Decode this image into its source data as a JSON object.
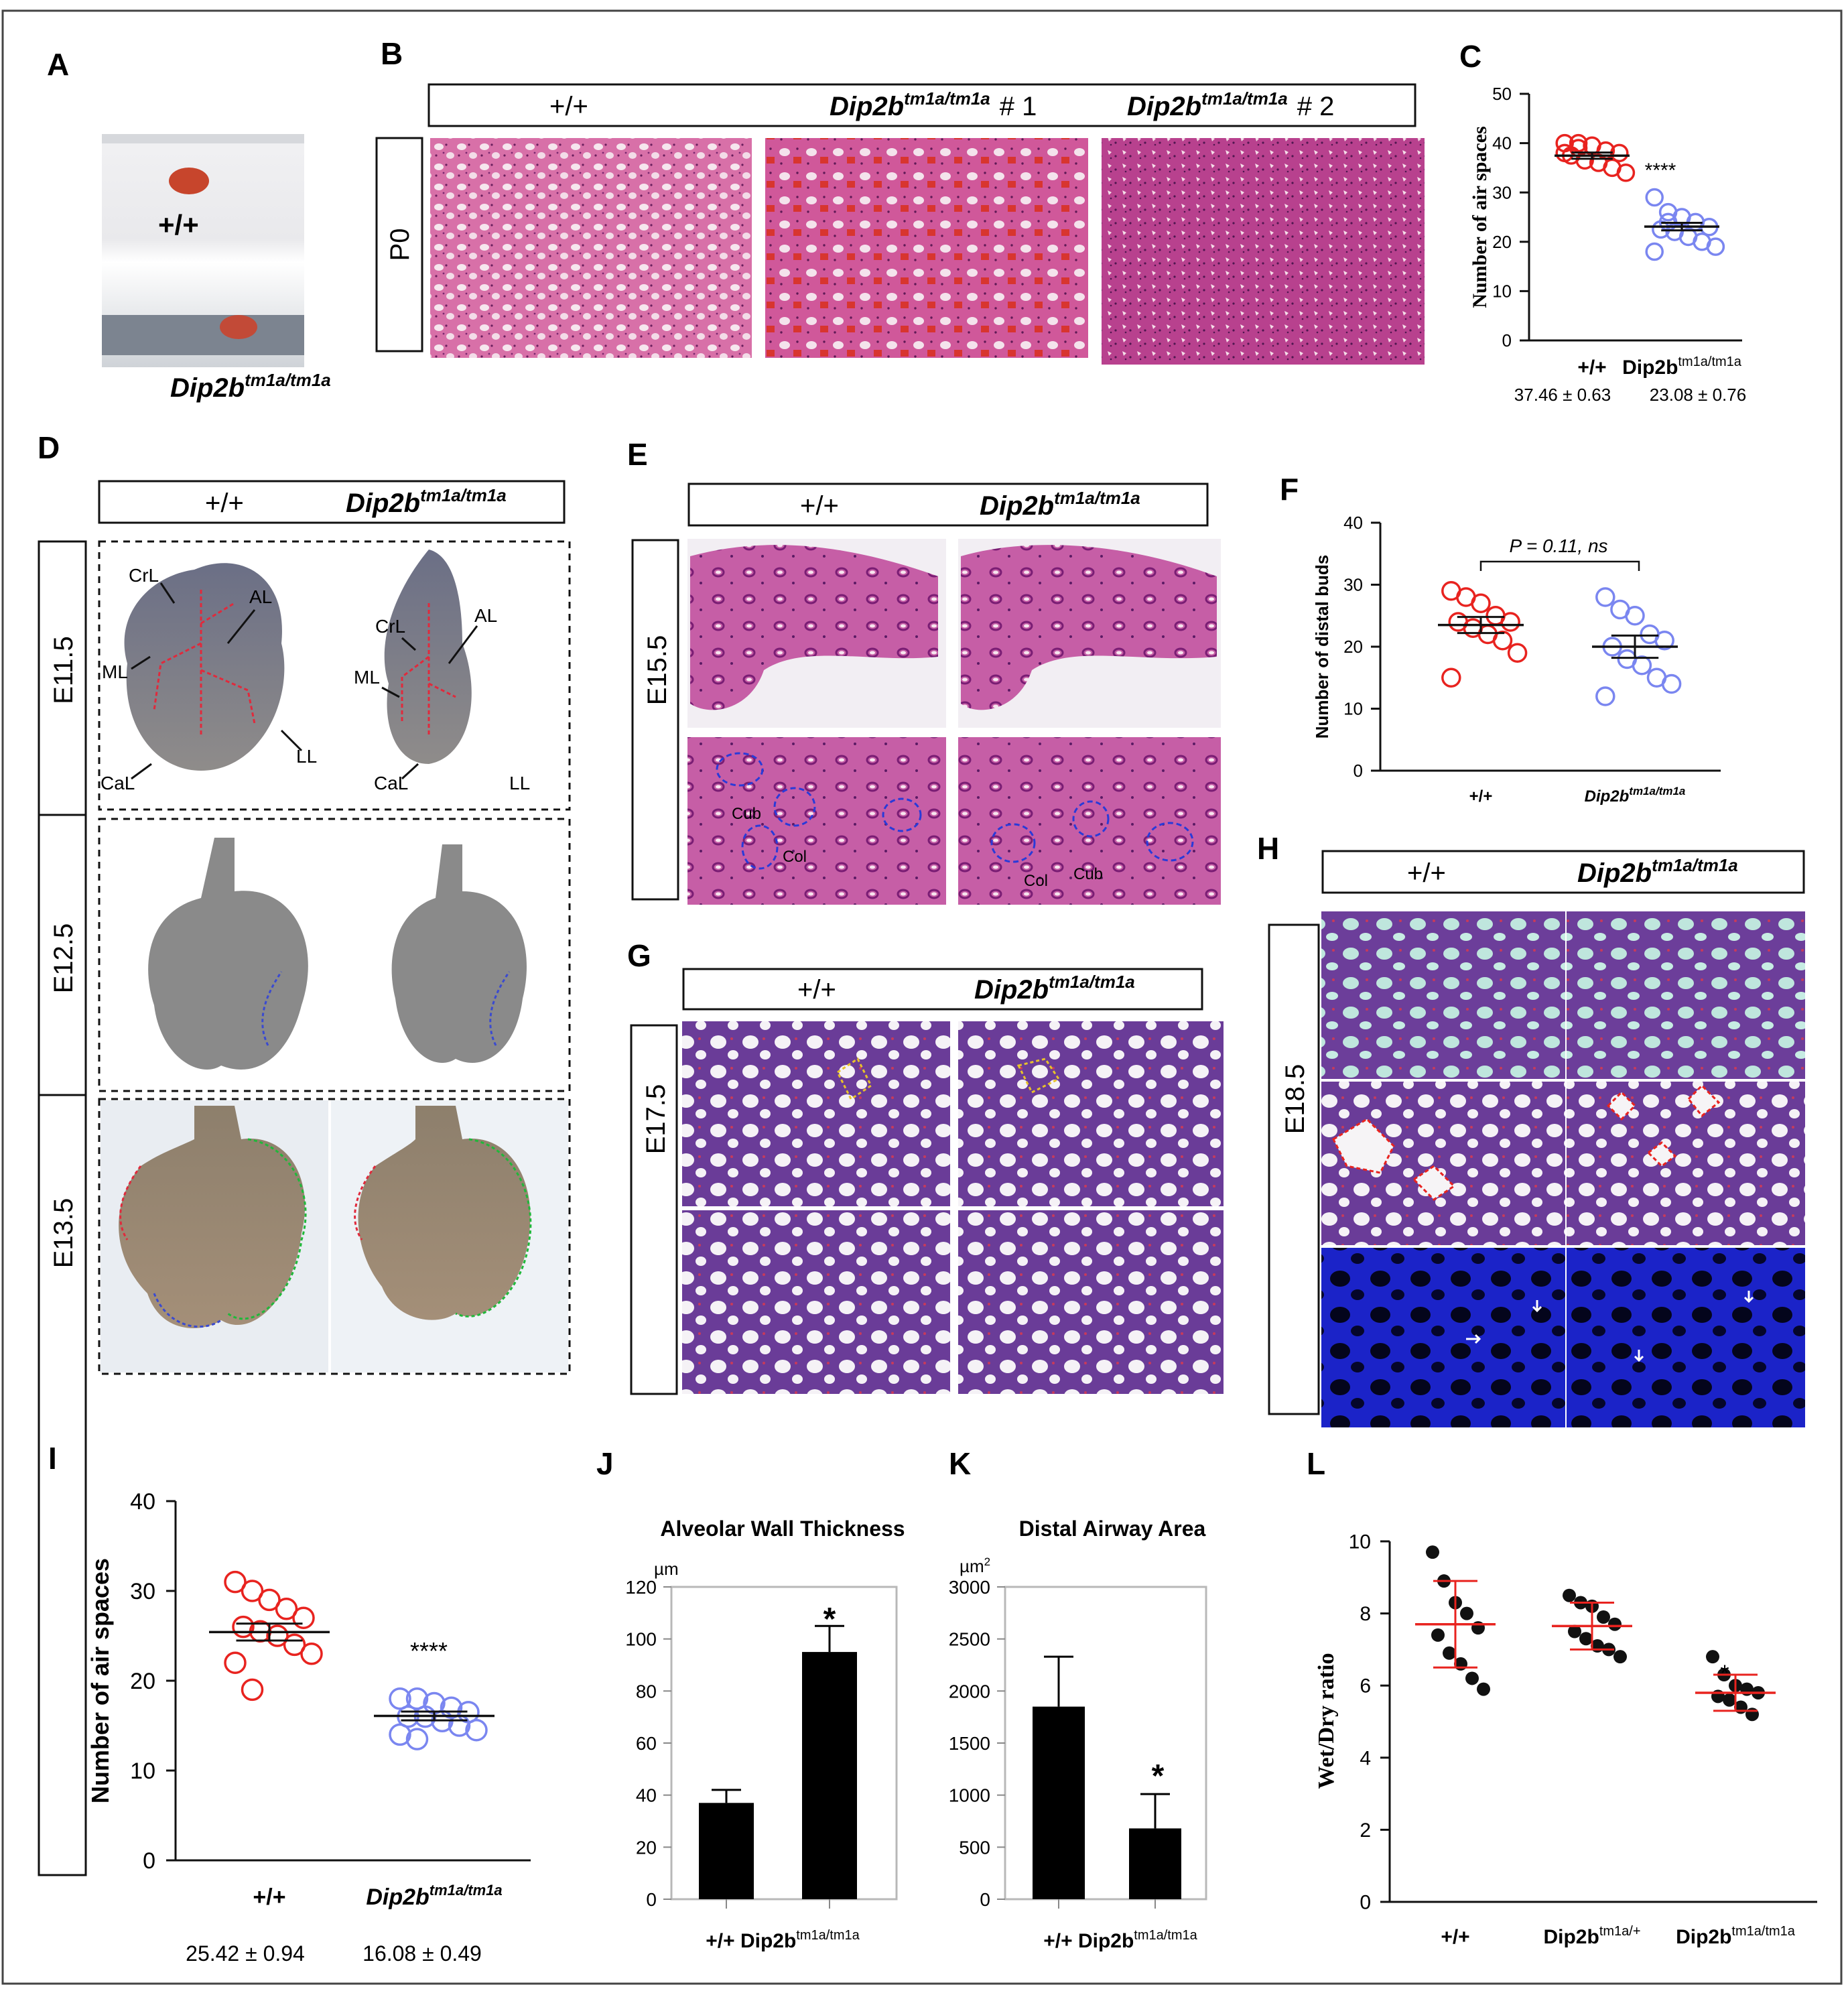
{
  "panels": {
    "A": {
      "letter": "A",
      "wt": "+/+",
      "mut_base": "Dip2b",
      "mut_sup": "tm1a/tm1a"
    },
    "B": {
      "letter": "B",
      "row": "P0",
      "wt": "+/+",
      "mut_base": "Dip2b",
      "mut_sup": "tm1a/tm1a",
      "n1": "# 1",
      "n2": "# 2"
    },
    "C": {
      "letter": "C",
      "ylabel": "Number of air spaces",
      "sig": "****",
      "groups": [
        {
          "label": "+/+",
          "sup": "",
          "stat": "37.46 ± 0.63"
        },
        {
          "label": "Dip2b",
          "sup": "tm1a/tm1a",
          "stat": "23.08 ± 0.76"
        }
      ]
    },
    "D": {
      "letter": "D",
      "wt": "+/+",
      "mut_base": "Dip2b",
      "mut_sup": "tm1a/tm1a",
      "rows": [
        "E11.5",
        "E12.5",
        "E13.5"
      ],
      "lobes": [
        "CrL",
        "AL",
        "ML",
        "LL",
        "CaL"
      ]
    },
    "E": {
      "letter": "E",
      "row": "E15.5",
      "wt": "+/+",
      "mut_base": "Dip2b",
      "mut_sup": "tm1a/tm1a",
      "marks": [
        "Cub",
        "Col"
      ]
    },
    "F": {
      "letter": "F",
      "ylabel": "Number of distal buds",
      "pval": "P = 0.11, ns",
      "groups": [
        {
          "label": "+/+",
          "sup": ""
        },
        {
          "label": "Dip2b",
          "sup": "tm1a/tm1a"
        }
      ]
    },
    "G": {
      "letter": "G",
      "row": "E17.5",
      "wt": "+/+",
      "mut_base": "Dip2b",
      "mut_sup": "tm1a/tm1a"
    },
    "H": {
      "letter": "H",
      "row": "E18.5",
      "wt": "+/+",
      "mut_base": "Dip2b",
      "mut_sup": "tm1a/tm1a"
    },
    "I": {
      "letter": "I",
      "ylabel": "Number of air spaces",
      "sig": "****",
      "groups": [
        {
          "label": "+/+",
          "sup": "",
          "stat": "25.42 ± 0.94"
        },
        {
          "label": "Dip2b",
          "sup": "tm1a/tm1a",
          "stat": "16.08 ± 0.49"
        }
      ]
    },
    "J": {
      "letter": "J",
      "title": "Alveolar Wall Thickness",
      "unit": "µm",
      "sig": "*",
      "xlabel_base": "+/+ Dip2b",
      "xlabel_sup": "tm1a/tm1a"
    },
    "K": {
      "letter": "K",
      "title": "Distal Airway Area",
      "unit": "µm",
      "unit_sup": "2",
      "sig": "*",
      "xlabel_base": "+/+ Dip2b",
      "xlabel_sup": "tm1a/tm1a"
    },
    "L": {
      "letter": "L",
      "ylabel": "Wet/Dry ratio",
      "sig": "*",
      "groups": [
        {
          "label": "+/+",
          "sup": ""
        },
        {
          "label": "Dip2b",
          "sup": "tm1a/+"
        },
        {
          "label": "Dip2b",
          "sup": "tm1a/tm1a"
        }
      ]
    }
  },
  "colors": {
    "wt": "#e8231f",
    "mut": "#7a86f0",
    "black": "#111111",
    "he_bg": "#efc6d8",
    "he_cell": "#b83a82",
    "dapi": "#1a20c8"
  },
  "chart_data": [
    {
      "panel": "C",
      "type": "scatter",
      "ylim": [
        0,
        50
      ],
      "yticks": [
        0,
        10,
        20,
        30,
        40,
        50
      ],
      "categories": [
        "+/+",
        "Dip2b tm1a/tm1a"
      ],
      "series": [
        {
          "name": "+/+",
          "values": [
            40,
            40,
            39.5,
            38.5,
            38,
            37.5,
            36.5,
            36,
            35,
            34,
            38,
            39
          ],
          "mean": 37.46,
          "sem": 0.63
        },
        {
          "name": "Dip2b tm1a/tm1a",
          "values": [
            29,
            26,
            25,
            24,
            23,
            22.5,
            22,
            21,
            20,
            19,
            18,
            24
          ],
          "mean": 23.08,
          "sem": 0.76
        }
      ]
    },
    {
      "panel": "F",
      "type": "scatter",
      "ylim": [
        0,
        40
      ],
      "yticks": [
        0,
        10,
        20,
        30,
        40
      ],
      "categories": [
        "+/+",
        "Dip2b tm1a/tm1a"
      ],
      "series": [
        {
          "name": "+/+",
          "values": [
            29,
            28,
            27,
            25,
            24,
            24,
            23,
            22,
            21,
            19,
            15
          ],
          "mean": 23.5,
          "sem": 1.3
        },
        {
          "name": "Dip2b tm1a/tm1a",
          "values": [
            28,
            26,
            25,
            22,
            21,
            20,
            18,
            17,
            15,
            14,
            12
          ],
          "mean": 20.0,
          "sem": 1.8
        }
      ]
    },
    {
      "panel": "I",
      "type": "scatter",
      "ylim": [
        0,
        40
      ],
      "yticks": [
        0,
        10,
        20,
        30,
        40
      ],
      "categories": [
        "+/+",
        "Dip2b tm1a/tm1a"
      ],
      "series": [
        {
          "name": "+/+",
          "values": [
            31,
            30,
            29,
            28,
            27,
            26,
            25.5,
            25,
            24,
            23,
            22,
            19
          ],
          "mean": 25.42,
          "sem": 0.94
        },
        {
          "name": "Dip2b tm1a/tm1a",
          "values": [
            18,
            18,
            17.5,
            17,
            16.5,
            16,
            16,
            15.5,
            15,
            14.5,
            14,
            13.5
          ],
          "mean": 16.08,
          "sem": 0.49
        }
      ]
    },
    {
      "panel": "J",
      "type": "bar",
      "ylim": [
        0,
        120
      ],
      "yticks": [
        0,
        20,
        40,
        60,
        80,
        100,
        120
      ],
      "categories": [
        "+/+",
        "Dip2b tm1a/tm1a"
      ],
      "values": [
        37,
        95
      ],
      "errors": [
        5,
        10
      ]
    },
    {
      "panel": "K",
      "type": "bar",
      "ylim": [
        0,
        3000
      ],
      "yticks": [
        0,
        500,
        1000,
        1500,
        2000,
        2500,
        3000
      ],
      "categories": [
        "+/+",
        "Dip2b tm1a/tm1a"
      ],
      "values": [
        1850,
        680
      ],
      "errors": [
        480,
        330
      ]
    },
    {
      "panel": "L",
      "type": "scatter",
      "ylim": [
        0,
        10
      ],
      "yticks": [
        0,
        2,
        4,
        6,
        8,
        10
      ],
      "categories": [
        "+/+",
        "Dip2b tm1a/+",
        "Dip2b tm1a/tm1a"
      ],
      "series": [
        {
          "name": "+/+",
          "values": [
            9.7,
            8.9,
            8.3,
            8.0,
            7.6,
            7.4,
            6.9,
            6.6,
            6.2,
            5.9
          ],
          "mean": 7.7,
          "sd": 1.2
        },
        {
          "name": "Dip2b tm1a/+",
          "values": [
            8.5,
            8.3,
            8.2,
            7.9,
            7.7,
            7.5,
            7.3,
            7.1,
            7.0,
            6.8
          ],
          "mean": 7.65,
          "sd": 0.65
        },
        {
          "name": "Dip2b tm1a/tm1a",
          "values": [
            6.8,
            6.3,
            6.0,
            5.9,
            5.8,
            5.7,
            5.6,
            5.4,
            5.2
          ],
          "mean": 5.8,
          "sd": 0.5
        }
      ]
    }
  ]
}
